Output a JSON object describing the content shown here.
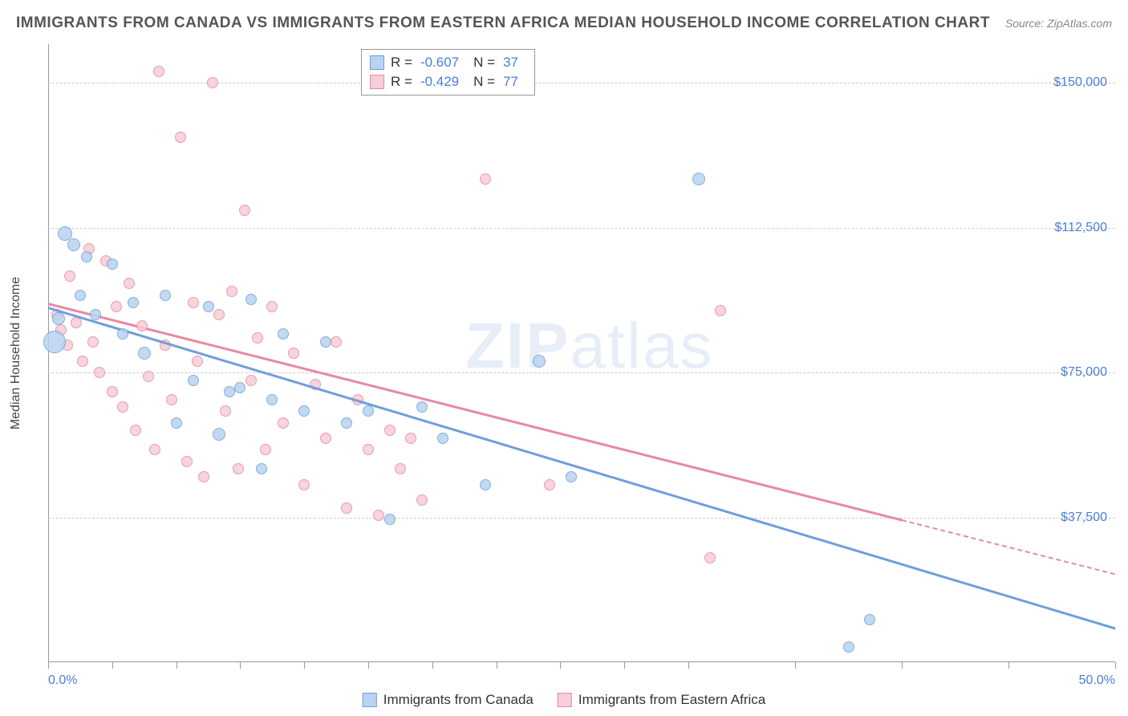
{
  "title": "IMMIGRANTS FROM CANADA VS IMMIGRANTS FROM EASTERN AFRICA MEDIAN HOUSEHOLD INCOME CORRELATION CHART",
  "source": "Source: ZipAtlas.com",
  "ylabel": "Median Household Income",
  "watermark_a": "ZIP",
  "watermark_b": "atlas",
  "chart": {
    "type": "scatter",
    "xlim": [
      0,
      50
    ],
    "ylim": [
      0,
      160000
    ],
    "xtick_label_start": "0.0%",
    "xtick_label_end": "50.0%",
    "xtick_positions_pct": [
      0,
      3,
      6,
      9,
      12,
      15,
      18,
      21,
      24,
      27,
      30,
      35,
      40,
      45,
      50
    ],
    "ytick_positions": [
      37500,
      75000,
      112500,
      150000
    ],
    "ytick_labels": [
      "$37,500",
      "$75,000",
      "$112,500",
      "$150,000"
    ],
    "grid_color": "#cccccc",
    "background": "#ffffff",
    "series": [
      {
        "name": "Immigrants from Canada",
        "color_fill": "#b9d3f0",
        "color_stroke": "#6f9fd8",
        "R": "-0.607",
        "N": "37",
        "trend": {
          "x1": 0,
          "y1": 92000,
          "x2": 50,
          "y2": 9000,
          "dash_from_x": 50
        },
        "points": [
          {
            "x": 0.3,
            "y": 83000,
            "r": 14
          },
          {
            "x": 0.5,
            "y": 89000,
            "r": 8
          },
          {
            "x": 0.8,
            "y": 111000,
            "r": 9
          },
          {
            "x": 1.2,
            "y": 108000,
            "r": 8
          },
          {
            "x": 1.5,
            "y": 95000,
            "r": 7
          },
          {
            "x": 1.8,
            "y": 105000,
            "r": 7
          },
          {
            "x": 2.2,
            "y": 90000,
            "r": 7
          },
          {
            "x": 3.0,
            "y": 103000,
            "r": 7
          },
          {
            "x": 3.5,
            "y": 85000,
            "r": 7
          },
          {
            "x": 4.0,
            "y": 93000,
            "r": 7
          },
          {
            "x": 4.5,
            "y": 80000,
            "r": 8
          },
          {
            "x": 5.5,
            "y": 95000,
            "r": 7
          },
          {
            "x": 6.0,
            "y": 62000,
            "r": 7
          },
          {
            "x": 6.8,
            "y": 73000,
            "r": 7
          },
          {
            "x": 7.5,
            "y": 92000,
            "r": 7
          },
          {
            "x": 8.0,
            "y": 59000,
            "r": 8
          },
          {
            "x": 8.5,
            "y": 70000,
            "r": 7
          },
          {
            "x": 9.0,
            "y": 71000,
            "r": 7
          },
          {
            "x": 9.5,
            "y": 94000,
            "r": 7
          },
          {
            "x": 10.0,
            "y": 50000,
            "r": 7
          },
          {
            "x": 10.5,
            "y": 68000,
            "r": 7
          },
          {
            "x": 11.0,
            "y": 85000,
            "r": 7
          },
          {
            "x": 12.0,
            "y": 65000,
            "r": 7
          },
          {
            "x": 13.0,
            "y": 83000,
            "r": 7
          },
          {
            "x": 14.0,
            "y": 62000,
            "r": 7
          },
          {
            "x": 15.0,
            "y": 65000,
            "r": 7
          },
          {
            "x": 16.0,
            "y": 37000,
            "r": 7
          },
          {
            "x": 17.5,
            "y": 66000,
            "r": 7
          },
          {
            "x": 18.5,
            "y": 58000,
            "r": 7
          },
          {
            "x": 20.5,
            "y": 46000,
            "r": 7
          },
          {
            "x": 23.0,
            "y": 78000,
            "r": 8
          },
          {
            "x": 24.5,
            "y": 48000,
            "r": 7
          },
          {
            "x": 30.5,
            "y": 125000,
            "r": 8
          },
          {
            "x": 37.5,
            "y": 4000,
            "r": 7
          },
          {
            "x": 38.5,
            "y": 11000,
            "r": 7
          }
        ]
      },
      {
        "name": "Immigrants from Eastern Africa",
        "color_fill": "#f7cdd8",
        "color_stroke": "#e68aa4",
        "R": "-0.429",
        "N": "77",
        "trend": {
          "x1": 0,
          "y1": 93000,
          "x2": 40,
          "y2": 37000,
          "dash_from_x": 40
        },
        "points": [
          {
            "x": 0.4,
            "y": 90000,
            "r": 7
          },
          {
            "x": 0.6,
            "y": 86000,
            "r": 7
          },
          {
            "x": 0.9,
            "y": 82000,
            "r": 7
          },
          {
            "x": 1.0,
            "y": 100000,
            "r": 7
          },
          {
            "x": 1.3,
            "y": 88000,
            "r": 7
          },
          {
            "x": 1.6,
            "y": 78000,
            "r": 7
          },
          {
            "x": 1.9,
            "y": 107000,
            "r": 7
          },
          {
            "x": 2.1,
            "y": 83000,
            "r": 7
          },
          {
            "x": 2.4,
            "y": 75000,
            "r": 7
          },
          {
            "x": 2.7,
            "y": 104000,
            "r": 7
          },
          {
            "x": 3.0,
            "y": 70000,
            "r": 7
          },
          {
            "x": 3.2,
            "y": 92000,
            "r": 7
          },
          {
            "x": 3.5,
            "y": 66000,
            "r": 7
          },
          {
            "x": 3.8,
            "y": 98000,
            "r": 7
          },
          {
            "x": 4.1,
            "y": 60000,
            "r": 7
          },
          {
            "x": 4.4,
            "y": 87000,
            "r": 7
          },
          {
            "x": 4.7,
            "y": 74000,
            "r": 7
          },
          {
            "x": 5.0,
            "y": 55000,
            "r": 7
          },
          {
            "x": 5.2,
            "y": 153000,
            "r": 7
          },
          {
            "x": 5.5,
            "y": 82000,
            "r": 7
          },
          {
            "x": 5.8,
            "y": 68000,
            "r": 7
          },
          {
            "x": 6.2,
            "y": 136000,
            "r": 7
          },
          {
            "x": 6.5,
            "y": 52000,
            "r": 7
          },
          {
            "x": 6.8,
            "y": 93000,
            "r": 7
          },
          {
            "x": 7.0,
            "y": 78000,
            "r": 7
          },
          {
            "x": 7.3,
            "y": 48000,
            "r": 7
          },
          {
            "x": 7.7,
            "y": 150000,
            "r": 7
          },
          {
            "x": 8.0,
            "y": 90000,
            "r": 7
          },
          {
            "x": 8.3,
            "y": 65000,
            "r": 7
          },
          {
            "x": 8.6,
            "y": 96000,
            "r": 7
          },
          {
            "x": 8.9,
            "y": 50000,
            "r": 7
          },
          {
            "x": 9.2,
            "y": 117000,
            "r": 7
          },
          {
            "x": 9.5,
            "y": 73000,
            "r": 7
          },
          {
            "x": 9.8,
            "y": 84000,
            "r": 7
          },
          {
            "x": 10.2,
            "y": 55000,
            "r": 7
          },
          {
            "x": 10.5,
            "y": 92000,
            "r": 7
          },
          {
            "x": 11.0,
            "y": 62000,
            "r": 7
          },
          {
            "x": 11.5,
            "y": 80000,
            "r": 7
          },
          {
            "x": 12.0,
            "y": 46000,
            "r": 7
          },
          {
            "x": 12.5,
            "y": 72000,
            "r": 7
          },
          {
            "x": 13.0,
            "y": 58000,
            "r": 7
          },
          {
            "x": 13.5,
            "y": 83000,
            "r": 7
          },
          {
            "x": 14.0,
            "y": 40000,
            "r": 7
          },
          {
            "x": 14.5,
            "y": 68000,
            "r": 7
          },
          {
            "x": 15.0,
            "y": 55000,
            "r": 7
          },
          {
            "x": 15.5,
            "y": 38000,
            "r": 7
          },
          {
            "x": 16.0,
            "y": 60000,
            "r": 7
          },
          {
            "x": 16.5,
            "y": 50000,
            "r": 7
          },
          {
            "x": 17.0,
            "y": 58000,
            "r": 7
          },
          {
            "x": 17.5,
            "y": 42000,
            "r": 7
          },
          {
            "x": 20.5,
            "y": 125000,
            "r": 7
          },
          {
            "x": 23.5,
            "y": 46000,
            "r": 7
          },
          {
            "x": 31.0,
            "y": 27000,
            "r": 7
          },
          {
            "x": 31.5,
            "y": 91000,
            "r": 7
          }
        ]
      }
    ]
  },
  "legend_top_rows": [
    {
      "swatch_fill": "#b9d3f0",
      "swatch_stroke": "#6f9fd8",
      "r_label": "R =",
      "r_val": "-0.607",
      "n_label": "N =",
      "n_val": "37"
    },
    {
      "swatch_fill": "#f7cdd8",
      "swatch_stroke": "#e68aa4",
      "r_label": "R =",
      "r_val": "-0.429",
      "n_label": "N =",
      "n_val": "77"
    }
  ],
  "legend_bottom": [
    {
      "swatch_fill": "#b9d3f0",
      "swatch_stroke": "#6f9fd8",
      "label": "Immigrants from Canada"
    },
    {
      "swatch_fill": "#f7cdd8",
      "swatch_stroke": "#e68aa4",
      "label": "Immigrants from Eastern Africa"
    }
  ]
}
